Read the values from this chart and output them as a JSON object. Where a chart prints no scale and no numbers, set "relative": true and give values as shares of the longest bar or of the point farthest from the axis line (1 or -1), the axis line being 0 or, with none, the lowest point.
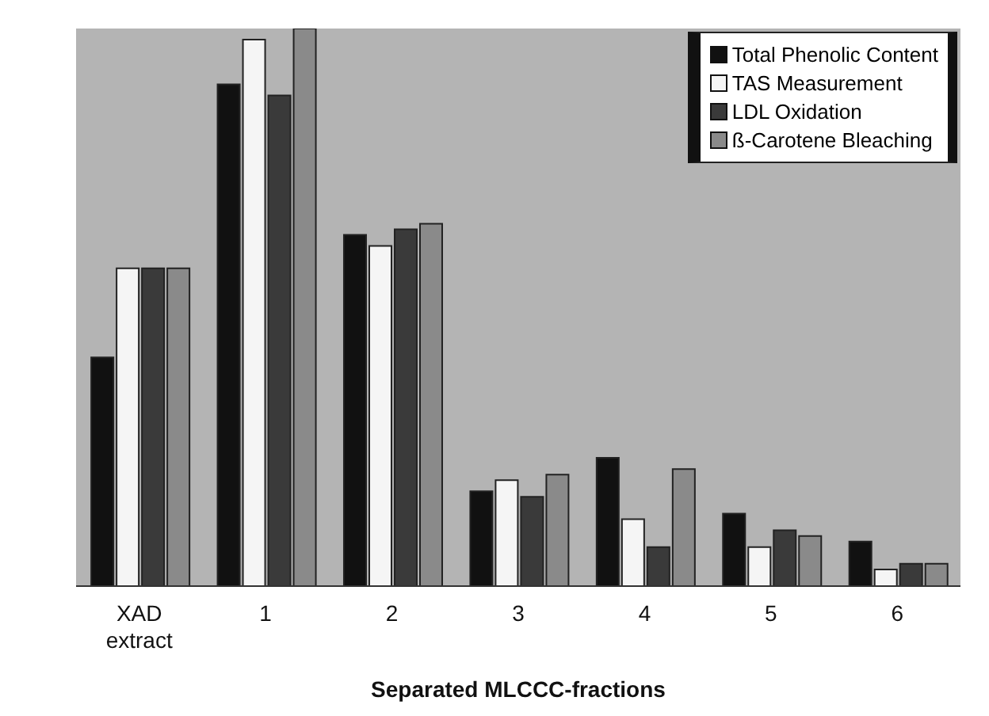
{
  "chart_data": {
    "type": "bar",
    "relative": true,
    "xlabel": "Separated MLCCC-fractions",
    "categories": [
      "XAD extract",
      "1",
      "2",
      "3",
      "4",
      "5",
      "6"
    ],
    "series": [
      {
        "name": "Total Phenolic Content",
        "color": "#111111",
        "values": [
          0.41,
          0.9,
          0.63,
          0.17,
          0.23,
          0.13,
          0.08
        ]
      },
      {
        "name": "TAS Measurement",
        "color": "#f5f5f5",
        "values": [
          0.57,
          0.98,
          0.61,
          0.19,
          0.12,
          0.07,
          0.03
        ]
      },
      {
        "name": "LDL Oxidation",
        "color": "#3a3a3a",
        "values": [
          0.57,
          0.88,
          0.64,
          0.16,
          0.07,
          0.1,
          0.04
        ]
      },
      {
        "name": "ß-Carotene Bleaching",
        "color": "#8a8a8a",
        "values": [
          0.57,
          1,
          0.65,
          0.2,
          0.21,
          0.09,
          0.04
        ]
      }
    ],
    "legend": "top right",
    "grid": false
  }
}
